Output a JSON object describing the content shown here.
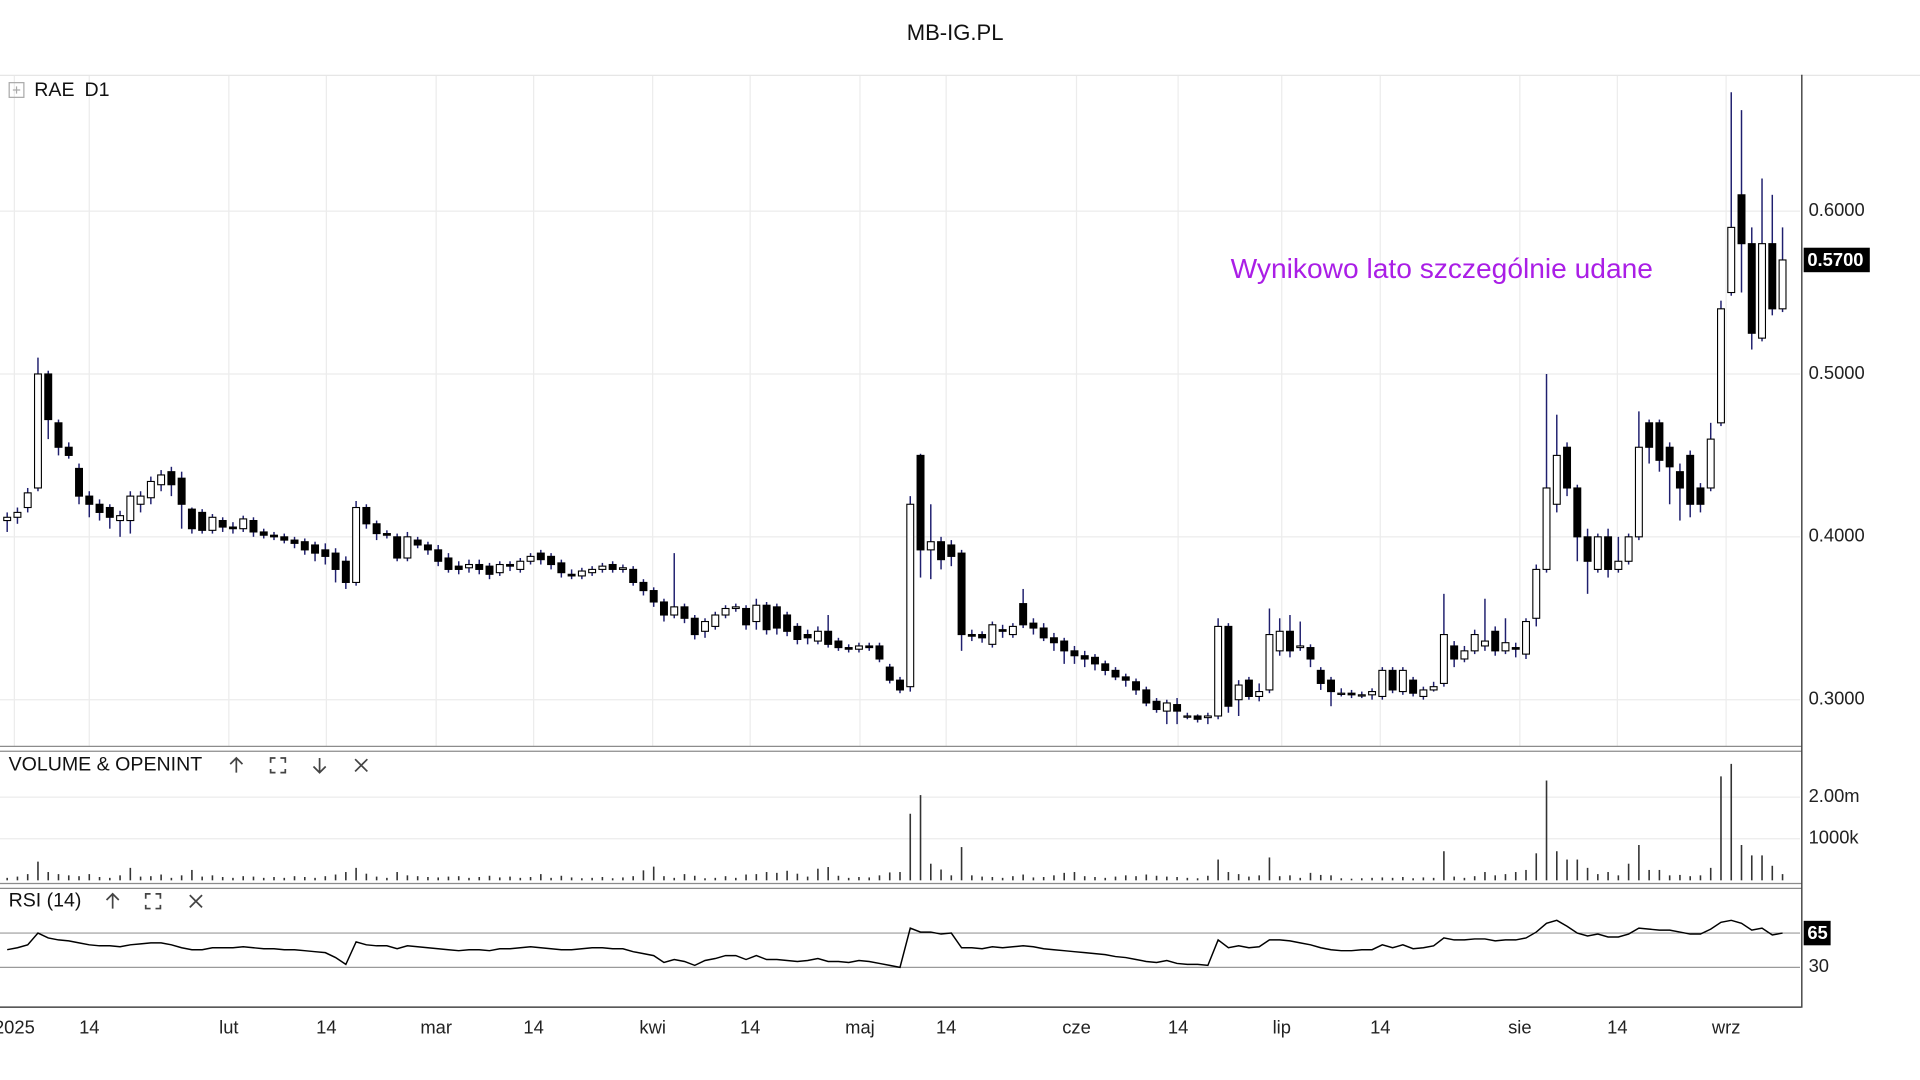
{
  "chart_data": [
    {
      "type": "candlestick",
      "title": "MB-IG.PL",
      "symbol": "RAE",
      "timeframe": "D1",
      "annotation": {
        "text": "Wynikowo lato szczególnie udane",
        "color": "#aa1ee6"
      },
      "up_color": "#ffffff",
      "down_color": "#000000",
      "wick_color": "#1f1f6e",
      "grid": true,
      "ylim": [
        0.271,
        0.683
      ],
      "yticks": [
        {
          "value": 0.3,
          "label": "0.3000"
        },
        {
          "value": 0.4,
          "label": "0.4000"
        },
        {
          "value": 0.5,
          "label": "0.5000"
        },
        {
          "value": 0.6,
          "label": "0.6000"
        }
      ],
      "last": {
        "value": 0.57,
        "label": "0.5700"
      },
      "open": [
        0.41,
        0.412,
        0.418,
        0.43,
        0.5,
        0.47,
        0.455,
        0.442,
        0.425,
        0.42,
        0.418,
        0.41,
        0.41,
        0.42,
        0.424,
        0.432,
        0.44,
        0.436,
        0.417,
        0.415,
        0.404,
        0.41,
        0.406,
        0.405,
        0.41,
        0.403,
        0.401,
        0.4,
        0.398,
        0.397,
        0.395,
        0.392,
        0.39,
        0.385,
        0.372,
        0.418,
        0.408,
        0.402,
        0.4,
        0.387,
        0.398,
        0.395,
        0.392,
        0.387,
        0.382,
        0.381,
        0.383,
        0.382,
        0.378,
        0.383,
        0.38,
        0.385,
        0.39,
        0.388,
        0.384,
        0.377,
        0.376,
        0.378,
        0.38,
        0.383,
        0.38,
        0.38,
        0.372,
        0.367,
        0.36,
        0.352,
        0.357,
        0.35,
        0.342,
        0.345,
        0.352,
        0.356,
        0.356,
        0.348,
        0.358,
        0.357,
        0.352,
        0.345,
        0.34,
        0.336,
        0.342,
        0.336,
        0.332,
        0.331,
        0.333,
        0.333,
        0.32,
        0.312,
        0.308,
        0.45,
        0.392,
        0.397,
        0.395,
        0.39,
        0.34,
        0.34,
        0.334,
        0.343,
        0.34,
        0.359,
        0.347,
        0.344,
        0.338,
        0.336,
        0.33,
        0.327,
        0.326,
        0.322,
        0.318,
        0.314,
        0.311,
        0.306,
        0.299,
        0.293,
        0.297,
        0.29,
        0.29,
        0.289,
        0.29,
        0.345,
        0.3,
        0.312,
        0.302,
        0.306,
        0.33,
        0.342,
        0.332,
        0.332,
        0.318,
        0.312,
        0.304,
        0.304,
        0.303,
        0.303,
        0.302,
        0.318,
        0.305,
        0.312,
        0.302,
        0.306,
        0.31,
        0.333,
        0.325,
        0.33,
        0.333,
        0.342,
        0.33,
        0.332,
        0.328,
        0.35,
        0.38,
        0.42,
        0.455,
        0.43,
        0.4,
        0.38,
        0.4,
        0.38,
        0.385,
        0.4,
        0.47,
        0.47,
        0.455,
        0.44,
        0.45,
        0.43,
        0.43,
        0.47,
        0.55,
        0.61,
        0.58,
        0.522,
        0.58,
        0.54
      ],
      "high": [
        0.415,
        0.418,
        0.43,
        0.51,
        0.502,
        0.472,
        0.458,
        0.445,
        0.428,
        0.423,
        0.42,
        0.416,
        0.428,
        0.428,
        0.437,
        0.441,
        0.443,
        0.44,
        0.418,
        0.417,
        0.414,
        0.412,
        0.409,
        0.413,
        0.412,
        0.405,
        0.403,
        0.402,
        0.4,
        0.399,
        0.397,
        0.396,
        0.393,
        0.388,
        0.422,
        0.42,
        0.41,
        0.404,
        0.402,
        0.403,
        0.4,
        0.397,
        0.395,
        0.39,
        0.385,
        0.386,
        0.386,
        0.384,
        0.385,
        0.385,
        0.387,
        0.39,
        0.392,
        0.39,
        0.386,
        0.38,
        0.381,
        0.382,
        0.384,
        0.385,
        0.383,
        0.382,
        0.374,
        0.369,
        0.362,
        0.39,
        0.359,
        0.352,
        0.35,
        0.354,
        0.358,
        0.359,
        0.358,
        0.362,
        0.36,
        0.359,
        0.354,
        0.347,
        0.343,
        0.345,
        0.352,
        0.338,
        0.334,
        0.335,
        0.335,
        0.335,
        0.322,
        0.314,
        0.425,
        0.451,
        0.42,
        0.4,
        0.398,
        0.392,
        0.343,
        0.342,
        0.348,
        0.346,
        0.347,
        0.368,
        0.35,
        0.347,
        0.341,
        0.338,
        0.333,
        0.33,
        0.328,
        0.324,
        0.32,
        0.316,
        0.313,
        0.308,
        0.301,
        0.3,
        0.301,
        0.292,
        0.291,
        0.292,
        0.35,
        0.347,
        0.312,
        0.314,
        0.31,
        0.356,
        0.35,
        0.352,
        0.348,
        0.334,
        0.32,
        0.314,
        0.307,
        0.306,
        0.305,
        0.307,
        0.32,
        0.32,
        0.32,
        0.314,
        0.308,
        0.311,
        0.365,
        0.336,
        0.333,
        0.343,
        0.362,
        0.345,
        0.35,
        0.335,
        0.35,
        0.383,
        0.5,
        0.475,
        0.458,
        0.432,
        0.405,
        0.402,
        0.405,
        0.4,
        0.402,
        0.477,
        0.472,
        0.472,
        0.458,
        0.445,
        0.453,
        0.433,
        0.47,
        0.545,
        0.673,
        0.662,
        0.59,
        0.62,
        0.61,
        0.59
      ],
      "low": [
        0.403,
        0.408,
        0.415,
        0.428,
        0.46,
        0.45,
        0.448,
        0.42,
        0.412,
        0.41,
        0.405,
        0.4,
        0.402,
        0.415,
        0.42,
        0.428,
        0.425,
        0.405,
        0.402,
        0.402,
        0.402,
        0.403,
        0.402,
        0.403,
        0.4,
        0.399,
        0.398,
        0.396,
        0.393,
        0.389,
        0.385,
        0.383,
        0.372,
        0.368,
        0.37,
        0.405,
        0.398,
        0.399,
        0.385,
        0.385,
        0.393,
        0.389,
        0.382,
        0.378,
        0.377,
        0.378,
        0.377,
        0.374,
        0.376,
        0.379,
        0.378,
        0.383,
        0.383,
        0.38,
        0.375,
        0.374,
        0.374,
        0.376,
        0.378,
        0.378,
        0.378,
        0.37,
        0.364,
        0.357,
        0.348,
        0.35,
        0.347,
        0.337,
        0.338,
        0.343,
        0.35,
        0.354,
        0.343,
        0.343,
        0.34,
        0.34,
        0.339,
        0.334,
        0.334,
        0.334,
        0.332,
        0.33,
        0.329,
        0.329,
        0.33,
        0.323,
        0.31,
        0.304,
        0.305,
        0.375,
        0.374,
        0.38,
        0.382,
        0.33,
        0.336,
        0.335,
        0.332,
        0.338,
        0.338,
        0.344,
        0.34,
        0.336,
        0.33,
        0.322,
        0.322,
        0.32,
        0.318,
        0.315,
        0.312,
        0.308,
        0.303,
        0.296,
        0.292,
        0.285,
        0.285,
        0.288,
        0.286,
        0.285,
        0.288,
        0.292,
        0.29,
        0.3,
        0.299,
        0.304,
        0.327,
        0.326,
        0.33,
        0.32,
        0.306,
        0.296,
        0.302,
        0.301,
        0.301,
        0.3,
        0.3,
        0.304,
        0.303,
        0.302,
        0.3,
        0.305,
        0.308,
        0.32,
        0.323,
        0.328,
        0.33,
        0.327,
        0.328,
        0.326,
        0.325,
        0.345,
        0.378,
        0.415,
        0.425,
        0.385,
        0.365,
        0.378,
        0.375,
        0.378,
        0.383,
        0.398,
        0.445,
        0.44,
        0.42,
        0.41,
        0.412,
        0.415,
        0.428,
        0.468,
        0.548,
        0.55,
        0.515,
        0.52,
        0.536,
        0.538
      ],
      "close": [
        0.412,
        0.415,
        0.427,
        0.5,
        0.472,
        0.455,
        0.45,
        0.425,
        0.42,
        0.415,
        0.412,
        0.413,
        0.425,
        0.425,
        0.434,
        0.438,
        0.432,
        0.42,
        0.405,
        0.404,
        0.412,
        0.406,
        0.405,
        0.411,
        0.403,
        0.401,
        0.4,
        0.398,
        0.396,
        0.392,
        0.39,
        0.388,
        0.38,
        0.372,
        0.418,
        0.408,
        0.402,
        0.401,
        0.387,
        0.4,
        0.395,
        0.392,
        0.385,
        0.38,
        0.38,
        0.383,
        0.38,
        0.377,
        0.383,
        0.382,
        0.385,
        0.388,
        0.386,
        0.383,
        0.378,
        0.376,
        0.379,
        0.38,
        0.382,
        0.38,
        0.381,
        0.372,
        0.367,
        0.36,
        0.352,
        0.357,
        0.35,
        0.34,
        0.348,
        0.352,
        0.356,
        0.357,
        0.346,
        0.358,
        0.343,
        0.344,
        0.342,
        0.337,
        0.338,
        0.342,
        0.334,
        0.332,
        0.331,
        0.333,
        0.332,
        0.325,
        0.312,
        0.306,
        0.42,
        0.392,
        0.397,
        0.386,
        0.388,
        0.34,
        0.339,
        0.338,
        0.346,
        0.342,
        0.345,
        0.346,
        0.344,
        0.338,
        0.335,
        0.33,
        0.327,
        0.325,
        0.322,
        0.318,
        0.314,
        0.312,
        0.306,
        0.298,
        0.294,
        0.298,
        0.293,
        0.29,
        0.288,
        0.29,
        0.345,
        0.296,
        0.309,
        0.302,
        0.305,
        0.34,
        0.342,
        0.33,
        0.333,
        0.325,
        0.31,
        0.305,
        0.304,
        0.303,
        0.303,
        0.305,
        0.318,
        0.306,
        0.318,
        0.304,
        0.306,
        0.308,
        0.34,
        0.325,
        0.33,
        0.34,
        0.336,
        0.33,
        0.335,
        0.331,
        0.348,
        0.38,
        0.43,
        0.45,
        0.43,
        0.4,
        0.385,
        0.4,
        0.38,
        0.385,
        0.4,
        0.455,
        0.455,
        0.447,
        0.443,
        0.43,
        0.42,
        0.42,
        0.46,
        0.54,
        0.59,
        0.58,
        0.525,
        0.58,
        0.54,
        0.57
      ]
    },
    {
      "type": "bar",
      "title": "VOLUME & OPENINT",
      "color": "#333333",
      "grid": true,
      "ylim": [
        -90000,
        3090000
      ],
      "yticks": [
        {
          "value": 1000000,
          "label": "1000k"
        },
        {
          "value": 2000000,
          "label": "2.00m"
        }
      ],
      "values": [
        60000,
        90000,
        150000,
        450000,
        200000,
        150000,
        120000,
        100000,
        150000,
        80000,
        60000,
        120000,
        300000,
        90000,
        100000,
        140000,
        60000,
        120000,
        250000,
        90000,
        120000,
        80000,
        60000,
        100000,
        90000,
        60000,
        80000,
        60000,
        100000,
        80000,
        60000,
        100000,
        140000,
        200000,
        300000,
        160000,
        90000,
        60000,
        200000,
        120000,
        100000,
        80000,
        70000,
        90000,
        100000,
        60000,
        80000,
        110000,
        70000,
        90000,
        60000,
        80000,
        150000,
        60000,
        110000,
        70000,
        50000,
        60000,
        80000,
        50000,
        70000,
        100000,
        240000,
        330000,
        100000,
        60000,
        150000,
        110000,
        50000,
        60000,
        100000,
        60000,
        140000,
        150000,
        200000,
        180000,
        230000,
        160000,
        90000,
        280000,
        320000,
        110000,
        60000,
        80000,
        70000,
        120000,
        190000,
        200000,
        1600000,
        2050000,
        400000,
        260000,
        120000,
        800000,
        120000,
        90000,
        80000,
        60000,
        100000,
        140000,
        70000,
        80000,
        120000,
        180000,
        200000,
        100000,
        80000,
        60000,
        90000,
        120000,
        100000,
        140000,
        110000,
        90000,
        80000,
        60000,
        50000,
        110000,
        500000,
        200000,
        150000,
        90000,
        120000,
        550000,
        100000,
        120000,
        60000,
        180000,
        130000,
        120000,
        50000,
        40000,
        50000,
        60000,
        70000,
        60000,
        80000,
        50000,
        70000,
        60000,
        700000,
        90000,
        60000,
        100000,
        200000,
        120000,
        150000,
        200000,
        250000,
        650000,
        2400000,
        700000,
        500000,
        500000,
        300000,
        150000,
        200000,
        120000,
        400000,
        850000,
        250000,
        250000,
        120000,
        130000,
        100000,
        120000,
        300000,
        2500000,
        2800000,
        850000,
        600000,
        600000,
        350000,
        150000
      ]
    },
    {
      "type": "line",
      "title": "RSI (14)",
      "color": "#000000",
      "ylim": [
        -10,
        110
      ],
      "yticks": [
        30,
        65
      ],
      "last": 65,
      "xlim": [
        -0.7,
        174.7
      ],
      "xticks": [
        {
          "value": 0.7,
          "label": "2025"
        },
        {
          "value": 8,
          "label": "14"
        },
        {
          "value": 21.6,
          "label": "lut"
        },
        {
          "value": 31.1,
          "label": "14"
        },
        {
          "value": 41.8,
          "label": "mar"
        },
        {
          "value": 51.3,
          "label": "14"
        },
        {
          "value": 62.9,
          "label": "kwi"
        },
        {
          "value": 72.4,
          "label": "14"
        },
        {
          "value": 83.1,
          "label": "maj"
        },
        {
          "value": 91.5,
          "label": "14"
        },
        {
          "value": 104.2,
          "label": "cze"
        },
        {
          "value": 114.1,
          "label": "14"
        },
        {
          "value": 124.2,
          "label": "lip"
        },
        {
          "value": 133.8,
          "label": "14"
        },
        {
          "value": 147.4,
          "label": "sie"
        },
        {
          "value": 156.9,
          "label": "14"
        },
        {
          "value": 167.5,
          "label": "wrz"
        }
      ],
      "values": [
        48,
        50,
        53,
        65,
        60,
        58,
        57,
        55,
        53,
        52,
        52,
        51,
        53,
        54,
        55,
        55,
        53,
        50,
        48,
        48,
        50,
        50,
        50,
        51,
        50,
        49,
        49,
        48,
        48,
        47,
        46,
        45,
        40,
        33,
        56,
        53,
        52,
        52,
        49,
        52,
        51,
        50,
        49,
        48,
        47,
        48,
        48,
        47,
        49,
        49,
        50,
        51,
        50,
        49,
        48,
        48,
        49,
        50,
        50,
        49,
        49,
        46,
        44,
        42,
        35,
        38,
        36,
        32,
        37,
        39,
        42,
        42,
        38,
        42,
        38,
        38,
        37,
        36,
        37,
        39,
        36,
        36,
        35,
        37,
        36,
        34,
        32,
        30,
        70,
        66,
        66,
        64,
        65,
        50,
        50,
        49,
        51,
        50,
        51,
        52,
        51,
        49,
        48,
        47,
        46,
        45,
        44,
        43,
        41,
        40,
        38,
        36,
        35,
        37,
        34,
        33,
        33,
        32,
        58,
        50,
        52,
        50,
        51,
        58,
        58,
        57,
        55,
        53,
        50,
        48,
        47,
        47,
        48,
        48,
        53,
        50,
        53,
        49,
        50,
        52,
        60,
        58,
        58,
        59,
        59,
        57,
        58,
        58,
        60,
        66,
        75,
        78,
        72,
        65,
        62,
        64,
        61,
        61,
        64,
        70,
        69,
        68,
        68,
        66,
        64,
        64,
        69,
        76,
        78,
        75,
        68,
        70,
        63,
        65
      ]
    }
  ]
}
